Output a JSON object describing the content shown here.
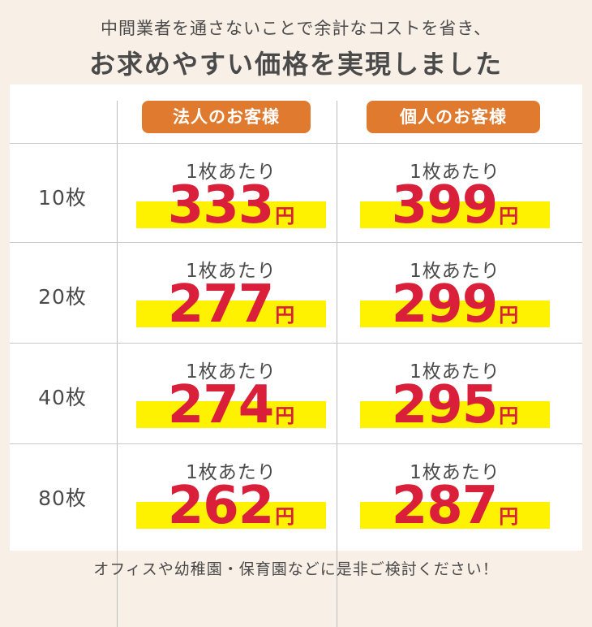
{
  "header": {
    "subtitle": "中間業者を通さないことで余計なコストを省き、",
    "title": "お求めやすい価格を実現しました"
  },
  "columns": [
    {
      "label": "法人のお客様"
    },
    {
      "label": "個人のお客様"
    }
  ],
  "unit_label": "1枚あたり",
  "currency": "円",
  "rows": [
    {
      "quantity": "10枚",
      "corporate_price": "333",
      "individual_price": "399"
    },
    {
      "quantity": "20枚",
      "corporate_price": "277",
      "individual_price": "299"
    },
    {
      "quantity": "40枚",
      "corporate_price": "274",
      "individual_price": "295"
    },
    {
      "quantity": "80枚",
      "corporate_price": "262",
      "individual_price": "287"
    }
  ],
  "footer": {
    "text": "オフィスや幼稚園・保育園などに是非ご検討ください！"
  },
  "colors": {
    "background": "#f8efe6",
    "badge": "#e07a2f",
    "price": "#d91f3a",
    "highlight": "#fff200"
  }
}
